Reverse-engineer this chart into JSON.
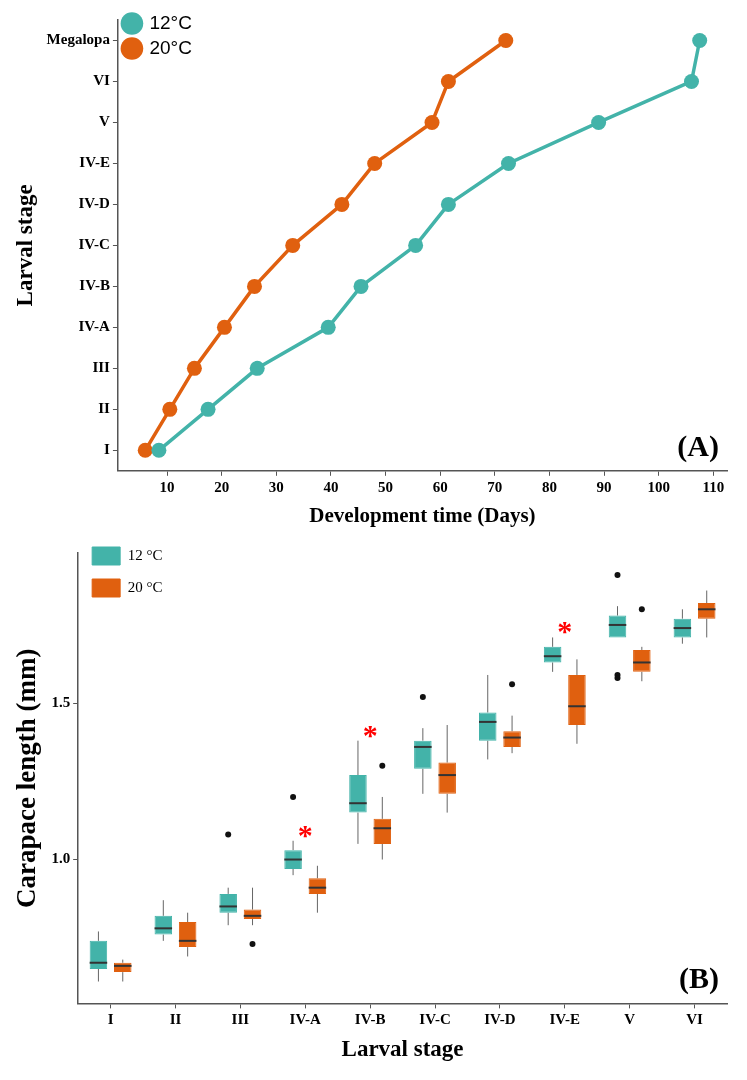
{
  "chart_data": [
    {
      "type": "line",
      "orientation": "horizontal",
      "xlabel": "Development time (Days)",
      "ylabel": "Larval stage",
      "xlim": [
        1,
        112.5
      ],
      "xticks": [
        10,
        20,
        30,
        40,
        50,
        60,
        70,
        80,
        90,
        100,
        110
      ],
      "categories": [
        "Megalopa",
        "VI",
        "V",
        "IV-E",
        "IV-D",
        "IV-C",
        "IV-B",
        "IV-A",
        "III",
        "II",
        "I"
      ],
      "marker": "circle",
      "line_style": "solid",
      "legend": "top left",
      "annotations": [
        "(A)"
      ],
      "series": [
        {
          "name": "12°C",
          "color": "#43b3a9",
          "values": [
            107.5,
            106,
            89,
            72.5,
            61.5,
            55.5,
            45.5,
            39.5,
            26.5,
            17.5,
            8.5
          ]
        },
        {
          "name": "20°C",
          "color": "#e0600f",
          "values": [
            72,
            61.5,
            58.5,
            48,
            42,
            33,
            26,
            20.5,
            15,
            10.5,
            6
          ]
        }
      ]
    },
    {
      "type": "box",
      "xlabel": "Larval stage",
      "ylabel": "Carapace length (mm)",
      "categories": [
        "I",
        "II",
        "III",
        "IV-A",
        "IV-B",
        "IV-C",
        "IV-D",
        "IV-E",
        "V",
        "VI"
      ],
      "ylim": [
        0.54,
        1.98
      ],
      "yticks": [
        {
          "value": 1,
          "label": "1.0"
        },
        1.5
      ],
      "legend": "top left",
      "annotations": [
        "*",
        "*",
        "*",
        "(B)"
      ],
      "series": [
        {
          "name": "12 °C",
          "color": "#43b3a9",
          "boxes": [
            {
              "low": 0.61,
              "q1": 0.65,
              "median": 0.67,
              "q3": 0.74,
              "high": 0.77
            },
            {
              "low": 0.74,
              "q1": 0.76,
              "median": 0.78,
              "q3": 0.82,
              "high": 0.87
            },
            {
              "low": 0.79,
              "q1": 0.83,
              "median": 0.85,
              "q3": 0.89,
              "high": 0.91,
              "outliers": [
                1.08
              ]
            },
            {
              "low": 0.95,
              "q1": 0.97,
              "median": 1.0,
              "q3": 1.03,
              "high": 1.06,
              "outliers": [
                1.2
              ]
            },
            {
              "low": 1.05,
              "q1": 1.15,
              "median": 1.18,
              "q3": 1.27,
              "high": 1.38
            },
            {
              "low": 1.21,
              "q1": 1.29,
              "median": 1.36,
              "q3": 1.38,
              "high": 1.42,
              "outliers": [
                1.52
              ]
            },
            {
              "low": 1.32,
              "q1": 1.38,
              "median": 1.44,
              "q3": 1.47,
              "high": 1.59
            },
            {
              "low": 1.6,
              "q1": 1.63,
              "median": 1.65,
              "q3": 1.68,
              "high": 1.71
            },
            {
              "low": 1.71,
              "q1": 1.71,
              "median": 1.75,
              "q3": 1.78,
              "high": 1.81,
              "outliers": [
                1.91,
                1.59,
                1.58
              ]
            },
            {
              "low": 1.69,
              "q1": 1.71,
              "median": 1.74,
              "q3": 1.77,
              "high": 1.8
            }
          ]
        },
        {
          "name": "20 °C",
          "color": "#e0600f",
          "boxes": [
            {
              "low": 0.61,
              "q1": 0.64,
              "median": 0.66,
              "q3": 0.67,
              "high": 0.68
            },
            {
              "low": 0.69,
              "q1": 0.72,
              "median": 0.74,
              "q3": 0.8,
              "high": 0.83
            },
            {
              "low": 0.79,
              "q1": 0.81,
              "median": 0.82,
              "q3": 0.84,
              "high": 0.91,
              "outliers": [
                0.73
              ]
            },
            {
              "low": 0.83,
              "q1": 0.89,
              "median": 0.91,
              "q3": 0.94,
              "high": 0.98
            },
            {
              "low": 1.0,
              "q1": 1.05,
              "median": 1.1,
              "q3": 1.13,
              "high": 1.2,
              "outliers": [
                1.3
              ]
            },
            {
              "low": 1.15,
              "q1": 1.21,
              "median": 1.27,
              "q3": 1.31,
              "high": 1.43
            },
            {
              "low": 1.34,
              "q1": 1.36,
              "median": 1.39,
              "q3": 1.41,
              "high": 1.46,
              "outliers": [
                1.56
              ]
            },
            {
              "low": 1.37,
              "q1": 1.43,
              "median": 1.49,
              "q3": 1.59,
              "high": 1.64
            },
            {
              "low": 1.57,
              "q1": 1.6,
              "median": 1.63,
              "q3": 1.67,
              "high": 1.68,
              "outliers": [
                1.8
              ]
            },
            {
              "low": 1.71,
              "q1": 1.77,
              "median": 1.8,
              "q3": 1.82,
              "high": 1.86
            }
          ]
        }
      ]
    }
  ]
}
